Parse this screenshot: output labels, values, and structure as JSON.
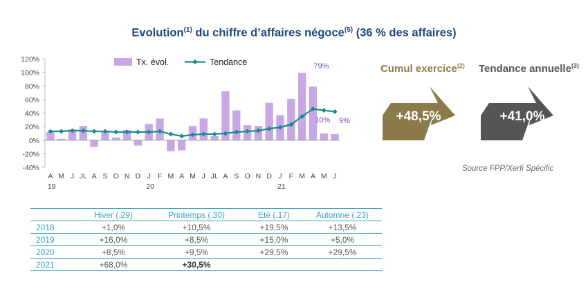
{
  "title": {
    "main": "Evolution",
    "sup1": "(1)",
    "mid": " du chiffre d’affaires négoce",
    "sup2": "(5)",
    "end": " (36 % des affaires)"
  },
  "colors": {
    "bar": "#c9a6e4",
    "line": "#1b8a8a",
    "title": "#1f497d",
    "cumul_arrow": "#8b7a4a",
    "tend_arrow": "#555555",
    "table_accent": "#3aa0c8",
    "data_label": "#7a4aa8"
  },
  "chart_data": {
    "type": "bar",
    "x": [
      "A",
      "M",
      "J",
      "JL",
      "A",
      "S",
      "O",
      "N",
      "D",
      "J",
      "F",
      "M",
      "A",
      "M",
      "J",
      "JL",
      "A",
      "S",
      "O",
      "N",
      "D",
      "J",
      "F",
      "M",
      "A",
      "M",
      "J"
    ],
    "year_labels": [
      {
        "label": "19",
        "at": 0
      },
      {
        "label": "20",
        "at": 9
      },
      {
        "label": "21",
        "at": 21
      }
    ],
    "series": [
      {
        "name": "Tx. évol.",
        "kind": "bar",
        "values": [
          12,
          2,
          16,
          21,
          -10,
          13,
          4,
          15,
          -8,
          24,
          32,
          -16,
          -15,
          21,
          32,
          6,
          72,
          44,
          22,
          21,
          55,
          37,
          61,
          99,
          79,
          10,
          9
        ]
      },
      {
        "name": "Tendance",
        "kind": "line",
        "values": [
          13,
          13,
          14,
          14,
          13,
          13,
          12,
          12,
          12,
          12,
          13,
          9,
          6,
          8,
          9,
          9,
          10,
          12,
          13,
          14,
          17,
          19,
          23,
          35,
          46,
          44,
          42
        ]
      }
    ],
    "ylim": [
      -40,
      120
    ],
    "yticks": [
      "-40%",
      "-20%",
      "0%",
      "20%",
      "40%",
      "60%",
      "80%",
      "100%",
      "120%"
    ],
    "data_labels": [
      {
        "text": "79%",
        "index": 24
      },
      {
        "text": "10%",
        "index": 25
      },
      {
        "text": "9%",
        "index": 26
      }
    ],
    "legend": "top",
    "grid": false
  },
  "cumul": {
    "label": "Cumul exercice",
    "sup": "(2)",
    "value": "+48,5%"
  },
  "tendance": {
    "label": "Tendance annuelle",
    "sup": "(3)",
    "value": "+41,0%"
  },
  "source": "Source FPP/Xerfi Spécific",
  "table": {
    "headers": [
      "Hiver (.29)",
      "Printemps (.30)",
      "Eté (.17)",
      "Automne (.23)"
    ],
    "rows": [
      {
        "year": "2018",
        "values": [
          "+1,0%",
          "+10,5%",
          "+19,5%",
          "+13,5%"
        ]
      },
      {
        "year": "2019",
        "values": [
          "+16,0%",
          "+8,5%",
          "+15,0%",
          "+5,0%"
        ]
      },
      {
        "year": "2020",
        "values": [
          "+8,5%",
          "+9,5%",
          "+29,5%",
          "+29,5%"
        ]
      },
      {
        "year": "2021",
        "values": [
          "+68,0%",
          "+30,5%",
          "",
          ""
        ]
      }
    ]
  }
}
